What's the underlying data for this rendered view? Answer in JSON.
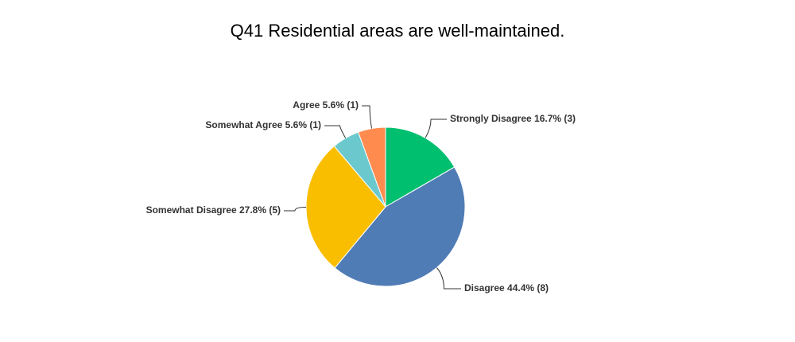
{
  "chart_data": {
    "type": "pie",
    "title": "Q41 Residential areas are well-maintained.",
    "categories": [
      "Strongly Disagree 16.7% (3)",
      "Disagree 44.4% (8)",
      "Somewhat Disagree 27.8% (5)",
      "Somewhat Agree 5.6% (1)",
      "Agree 5.6% (1)"
    ],
    "values": [
      16.7,
      44.4,
      27.8,
      5.6,
      5.6
    ],
    "colors": [
      "#00bf6f",
      "#507cb6",
      "#f9be00",
      "#6bc8cd",
      "#ff8b4f"
    ]
  }
}
